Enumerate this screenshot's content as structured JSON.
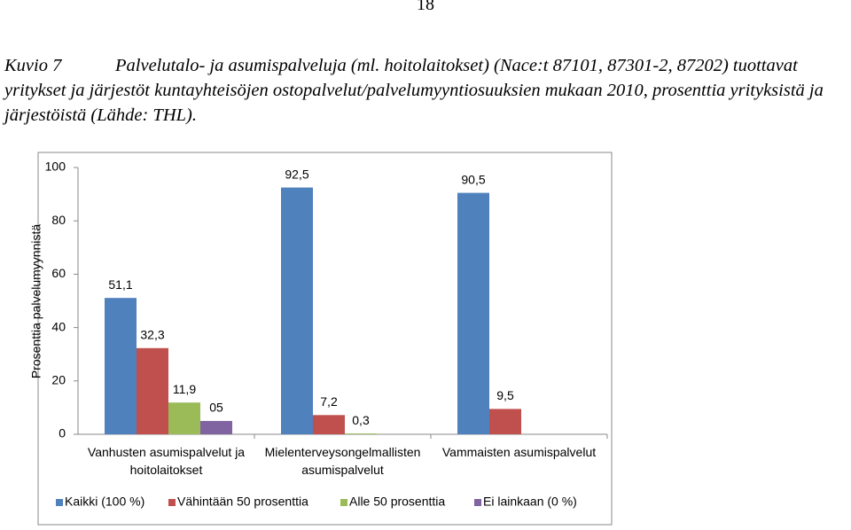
{
  "page_number": "18",
  "figure_label": "Kuvio 7",
  "chart_data": {
    "type": "bar",
    "title": "Palvelutalo- ja asumispalveluja (ml. hoitolaitokset) (Nace:t 87101, 87301-2, 87202) tuottavat yritykset ja järjestöt kuntayhteisöjen ostopalvelut/palvelumyyntiosuuksien mukaan 2010, prosenttia yrityksistä ja järjestöistä (Lähde: THL).",
    "y_label": "Prosenttia palvelumyynnistä",
    "categories": [
      "Vanhusten asumispalvelut ja hoitolaitokset",
      "Mielenterveysongelmallisten asumispalvelut",
      "Vammaisten asumispalvelut"
    ],
    "series": [
      {
        "name": "Kaikki (100 %)",
        "color": "#4f81bd",
        "values": [
          51.1,
          92.5,
          90.5
        ],
        "value_labels": [
          "51,1",
          "92,5",
          "90,5"
        ]
      },
      {
        "name": "Vähintään 50 prosenttia",
        "color": "#c0504d",
        "values": [
          32.3,
          7.2,
          9.5
        ],
        "value_labels": [
          "32,3",
          "7,2",
          "9,5"
        ]
      },
      {
        "name": "Alle 50 prosenttia",
        "color": "#9bbb59",
        "values": [
          11.9,
          0.3,
          null
        ],
        "value_labels": [
          "11,9",
          "0,3",
          null
        ]
      },
      {
        "name": "Ei lainkaan (0 %)",
        "color": "#8064a2",
        "values": [
          5,
          null,
          null
        ],
        "value_labels": [
          "05",
          null,
          null
        ]
      }
    ],
    "ylim": [
      0,
      100
    ],
    "yticks": [
      0,
      20,
      40,
      60,
      80,
      100
    ],
    "grid": false,
    "legend": "bottom"
  }
}
